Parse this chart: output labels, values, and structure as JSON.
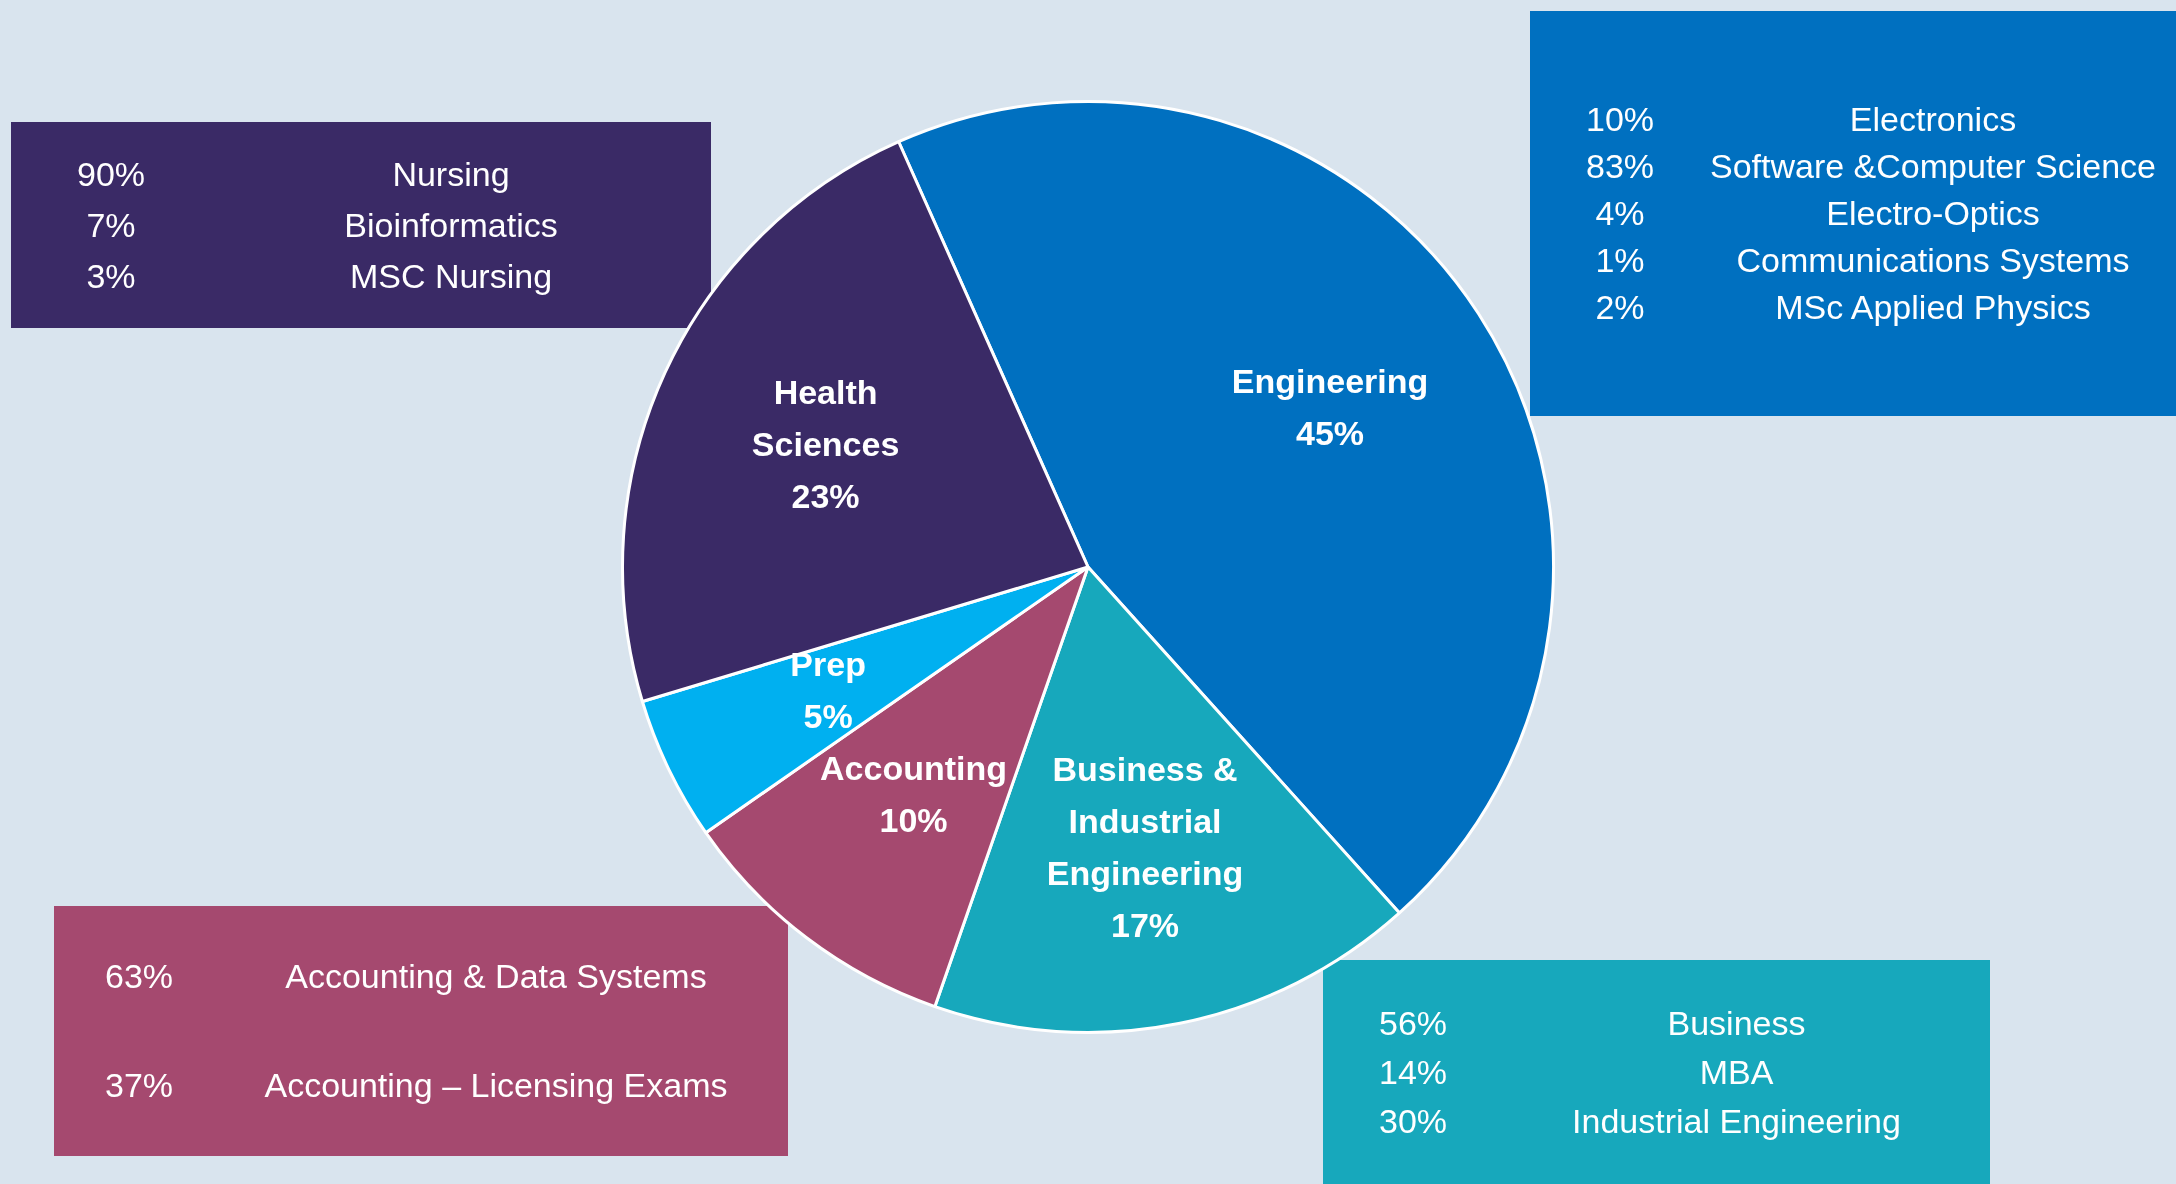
{
  "chart_data": {
    "type": "pie",
    "categories": [
      "Engineering",
      "Business & Industrial Engineering",
      "Accounting",
      "Prep",
      "Health Sciences"
    ],
    "values": [
      45,
      17,
      10,
      5,
      23
    ],
    "colors": [
      "#0070c0",
      "#17a8bc",
      "#a5496f",
      "#00b0f0",
      "#3a2a66"
    ],
    "value_labels": [
      "45%",
      "17%",
      "10%",
      "5%",
      "23%"
    ],
    "legend": false,
    "annotations": [
      "90% Nursing",
      "7% Bioinformatics",
      "3% MSC Nursing",
      "10% Electronics",
      "83% Software &Computer Science",
      "4% Electro-Optics",
      "1% Communications Systems",
      "2% MSc Applied Physics",
      "63% Accounting & Data Systems",
      "37% Accounting – Licensing Exams",
      "56% Business",
      "14% MBA",
      "30% Industrial Engineering"
    ]
  }
}
